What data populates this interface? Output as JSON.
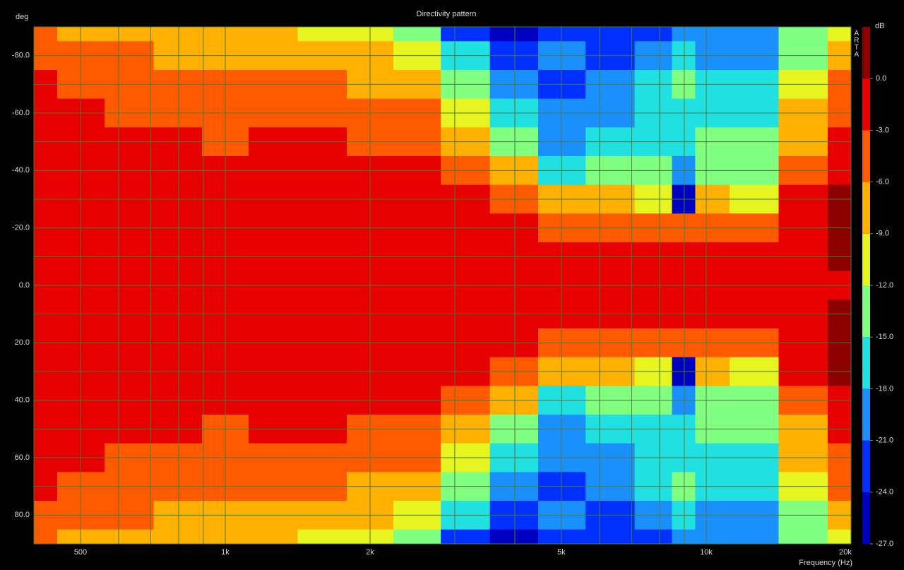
{
  "chart_data": {
    "type": "contour",
    "title": "Directivity pattern",
    "y_label": "deg",
    "x_label": "Frequency (Hz)",
    "colorbar_label": "dB",
    "watermark": "ARTA",
    "x_scale": "log",
    "xlim": [
      400,
      20000
    ],
    "ylim": [
      -90,
      90
    ],
    "xticks": [
      500,
      {
        "value": 1000,
        "label": "1k"
      },
      {
        "value": 2000,
        "label": "2k"
      },
      {
        "value": 5000,
        "label": "5k"
      },
      {
        "value": 10000,
        "label": "10k"
      },
      {
        "value": 20000,
        "label": "20k"
      }
    ],
    "xgrid": [
      600,
      700,
      800,
      900,
      3000,
      4000,
      6000,
      7000,
      8000,
      9000
    ],
    "yticks": [
      {
        "value": -80,
        "label": "-80.0"
      },
      {
        "value": -60,
        "label": "-60.0"
      },
      {
        "value": -40,
        "label": "-40.0"
      },
      {
        "value": -20,
        "label": "-20.0"
      },
      {
        "value": 0,
        "label": "0.0"
      },
      {
        "value": 20,
        "label": "20.0"
      },
      {
        "value": 40,
        "label": "40.0"
      },
      {
        "value": 60,
        "label": "60.0"
      },
      {
        "value": 80,
        "label": "80.0"
      }
    ],
    "ygrid": [
      -70,
      -50,
      -30,
      -10,
      10,
      30,
      50,
      70
    ],
    "grid": true,
    "grid_color": "#4a7a3a",
    "x": [
      400,
      500,
      630,
      800,
      1000,
      1250,
      1600,
      2000,
      2500,
      3150,
      4000,
      5000,
      6300,
      8000,
      9000,
      10000,
      12500,
      16000,
      20000
    ],
    "y": [
      -90,
      -80,
      -70,
      -60,
      -50,
      -40,
      -30,
      -20,
      -10,
      0,
      10,
      20,
      30,
      40,
      50,
      60,
      70,
      80,
      90
    ],
    "z": [
      [
        -4.5,
        -6.5,
        -7.5,
        -8.5,
        -8.8,
        -8.5,
        -9.5,
        -10.5,
        -12.5,
        -22,
        -25,
        -22,
        -23,
        -22,
        -19,
        -21,
        -21,
        -15,
        -10
      ],
      [
        -3.5,
        -5,
        -6,
        -6.5,
        -7.5,
        -7,
        -7.5,
        -8.5,
        -10.5,
        -16,
        -24,
        -21,
        -22,
        -19,
        -16,
        -20,
        -19,
        -13,
        -8
      ],
      [
        -2.5,
        -3.3,
        -4.8,
        -5.2,
        -5.9,
        -5.5,
        -5.8,
        -6.5,
        -8.5,
        -13,
        -21,
        -22,
        -20,
        -17,
        -14,
        -18,
        -18,
        -11,
        -6
      ],
      [
        -1.8,
        -2.3,
        -3.5,
        -4,
        -4.3,
        -4,
        -4.3,
        -5,
        -6,
        -10,
        -18,
        -21,
        -19,
        -16,
        -17,
        -17,
        -17,
        -9,
        -3.5
      ],
      [
        -1.3,
        -1.6,
        -2.2,
        -2.7,
        -3.1,
        -2.8,
        -3,
        -3.5,
        -4.2,
        -7,
        -15,
        -19,
        -17,
        -17,
        -16,
        -15,
        -15,
        -7,
        -2
      ],
      [
        -1,
        -1.1,
        -1.3,
        -1.6,
        -2.2,
        -1.8,
        -2,
        -2.5,
        -3,
        -4,
        -9,
        -16,
        -14,
        -15,
        -20,
        -13,
        -12.5,
        -5,
        -1
      ],
      [
        -0.8,
        -0.8,
        -0.9,
        -1,
        -1.1,
        -1,
        -1.2,
        -1.4,
        -1.8,
        -2.5,
        -5,
        -8,
        -7,
        -10,
        -25,
        -9,
        -10,
        -3,
        0.5
      ],
      [
        -0.6,
        -0.6,
        -0.6,
        -0.7,
        -0.7,
        -0.7,
        -0.8,
        -0.9,
        -1,
        -1.3,
        -2,
        -4,
        -3.5,
        -5,
        -5,
        -4,
        -6,
        -2,
        0.3
      ],
      [
        -0.5,
        -0.5,
        -0.5,
        -0.5,
        -0.5,
        -0.5,
        -0.5,
        -0.6,
        -0.7,
        -0.8,
        -1,
        -2,
        -2,
        -2,
        -2,
        -1.5,
        -2,
        -1,
        0.2
      ],
      [
        -0.5,
        -0.5,
        -0.5,
        -0.5,
        -0.5,
        -0.5,
        -0.5,
        -0.5,
        -0.5,
        -0.6,
        -0.7,
        -0.8,
        -0.8,
        -1,
        -1,
        -1,
        -1,
        -0.5,
        -0.8
      ],
      [
        -0.5,
        -0.5,
        -0.5,
        -0.5,
        -0.5,
        -0.5,
        -0.5,
        -0.6,
        -0.7,
        -0.8,
        -1,
        -2,
        -2,
        -2,
        -2,
        -1.5,
        -2,
        -1,
        0.2
      ],
      [
        -0.6,
        -0.6,
        -0.6,
        -0.7,
        -0.7,
        -0.7,
        -0.8,
        -0.9,
        -1,
        -1.3,
        -2,
        -4,
        -3.5,
        -5,
        -5,
        -4,
        -6,
        -2,
        0.3
      ],
      [
        -0.8,
        -0.8,
        -0.9,
        -1,
        -1.1,
        -1,
        -1.2,
        -1.4,
        -1.8,
        -2.5,
        -5,
        -8,
        -7,
        -10,
        -25,
        -9,
        -10,
        -3,
        0.5
      ],
      [
        -1,
        -1.1,
        -1.3,
        -1.6,
        -2.2,
        -1.8,
        -2,
        -2.5,
        -3,
        -4,
        -9,
        -16,
        -14,
        -15,
        -20,
        -13,
        -12.5,
        -5,
        -1
      ],
      [
        -1.3,
        -1.6,
        -2.2,
        -2.7,
        -3.1,
        -2.8,
        -3,
        -3.5,
        -4.2,
        -7,
        -15,
        -19,
        -17,
        -17,
        -16,
        -15,
        -15,
        -7,
        -2
      ],
      [
        -1.8,
        -2.3,
        -3.5,
        -4,
        -4.3,
        -4,
        -4.3,
        -5,
        -6,
        -10,
        -18,
        -21,
        -19,
        -16,
        -17,
        -17,
        -17,
        -9,
        -3.5
      ],
      [
        -2.5,
        -3.3,
        -4.8,
        -5.2,
        -5.9,
        -5.5,
        -5.8,
        -6.5,
        -8.5,
        -13,
        -21,
        -22,
        -20,
        -17,
        -14,
        -18,
        -18,
        -11,
        -6
      ],
      [
        -3.5,
        -5,
        -6,
        -6.5,
        -7.5,
        -7,
        -7.5,
        -8.5,
        -10.5,
        -16,
        -24,
        -21,
        -22,
        -19,
        -16,
        -20,
        -19,
        -13,
        -8
      ],
      [
        -4.5,
        -6.5,
        -7.5,
        -8.5,
        -8.8,
        -8.5,
        -9.5,
        -10.5,
        -12.5,
        -22,
        -25,
        -22,
        -23,
        -22,
        -19,
        -21,
        -21,
        -15,
        -10
      ]
    ],
    "clim": [
      -27,
      3
    ],
    "levels": [
      -27,
      -24,
      -21,
      -18,
      -15,
      -12,
      -9,
      -6,
      -3,
      0,
      3
    ],
    "colors": [
      "#0000c0",
      "#0030ff",
      "#1a90ff",
      "#20e0e0",
      "#80ff80",
      "#e6f520",
      "#ffb000",
      "#ff5a00",
      "#e60000",
      "#8c0000"
    ],
    "cticks": [
      {
        "value": 0,
        "label": "0.0"
      },
      {
        "value": -3,
        "label": "-3.0"
      },
      {
        "value": -6,
        "label": "-6.0"
      },
      {
        "value": -9,
        "label": "-9.0"
      },
      {
        "value": -12,
        "label": "-12.0"
      },
      {
        "value": -15,
        "label": "-15.0"
      },
      {
        "value": -18,
        "label": "-18.0"
      },
      {
        "value": -21,
        "label": "-21.0"
      },
      {
        "value": -24,
        "label": "-24.0"
      },
      {
        "value": -27,
        "label": "-27.0"
      }
    ]
  }
}
